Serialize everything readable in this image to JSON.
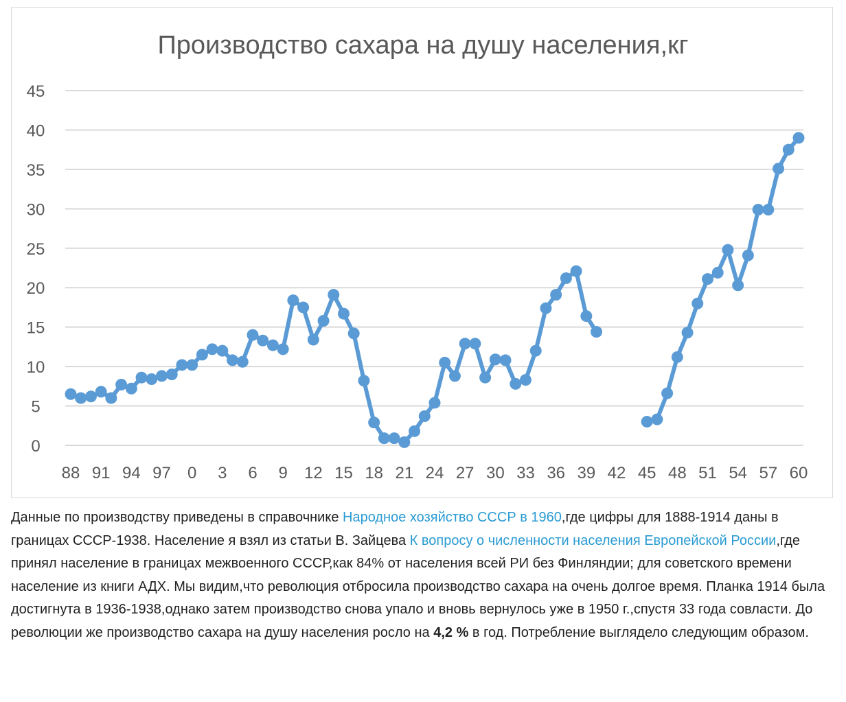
{
  "chart_data": {
    "type": "line",
    "title": "Производство сахара на душу населения,кг",
    "xlabel": "",
    "ylabel": "",
    "ylim": [
      0,
      45
    ],
    "yticks": [
      "0",
      "5",
      "10",
      "15",
      "20",
      "25",
      "30",
      "35",
      "40",
      "45"
    ],
    "xticks": [
      "88",
      "91",
      "94",
      "97",
      "0",
      "3",
      "6",
      "9",
      "12",
      "15",
      "18",
      "21",
      "24",
      "27",
      "30",
      "33",
      "36",
      "39",
      "42",
      "45",
      "48",
      "51",
      "54",
      "57",
      "60"
    ],
    "x_start_year": 1888,
    "x_end_year": 1960,
    "grid": true,
    "legend": "none",
    "color": "#5b9bd5",
    "values": [
      6.5,
      6.0,
      6.2,
      6.8,
      6.0,
      7.7,
      7.2,
      8.6,
      8.4,
      8.8,
      9.0,
      10.2,
      10.2,
      11.5,
      12.2,
      12.0,
      10.8,
      10.6,
      14.0,
      13.3,
      12.7,
      12.2,
      18.4,
      17.5,
      13.4,
      15.8,
      19.1,
      16.7,
      14.2,
      8.2,
      2.9,
      0.9,
      0.9,
      0.4,
      1.8,
      3.7,
      5.4,
      10.5,
      8.8,
      12.9,
      12.9,
      8.6,
      10.9,
      10.8,
      7.8,
      8.3,
      12.0,
      17.4,
      19.1,
      21.2,
      22.1,
      16.4,
      14.4,
      null,
      null,
      null,
      null,
      3.0,
      3.3,
      6.6,
      11.2,
      14.3,
      18.0,
      21.1,
      21.9,
      24.8,
      20.3,
      24.1,
      29.9,
      29.9,
      35.1,
      37.5,
      39.0
    ]
  },
  "text": {
    "t1": "Данные по производству приведены в справочнике ",
    "link1": "Народное хозяйство СССР в 1960",
    "t2": ",где цифры для 1888-1914 даны в границах СССР-1938. Население я взял из статьи В. Зайцева ",
    "link2": "К вопросу о численности населения Европейской России",
    "t3": ",где принял население в границах межвоенного СССР,как 84% от населения всей РИ без Финляндии; для советского времени население из книги АДХ. Мы видим,что революция отбросила производство сахара на очень долгое время. Планка 1914 была достигнута в 1936-1938,однако затем производство снова упало и вновь вернулось уже в 1950 г.,спустя 33 года совласти. До революции же производство сахара на душу населения росло на ",
    "bold": "4,2 %",
    "t4": " в год. Потребление выглядело следующим образом."
  }
}
